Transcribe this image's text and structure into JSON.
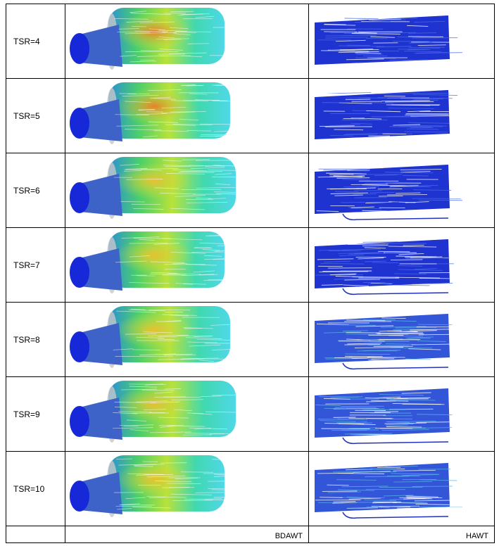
{
  "table": {
    "rows": [
      {
        "label": "TSR=4"
      },
      {
        "label": "TSR=5"
      },
      {
        "label": "TSR=6"
      },
      {
        "label": "TSR=7"
      },
      {
        "label": "TSR=8"
      },
      {
        "label": "TSR=9"
      },
      {
        "label": "TSR=10"
      }
    ],
    "footer": {
      "bdawt": "BDAWT",
      "hawt": "HAWT"
    }
  }
}
